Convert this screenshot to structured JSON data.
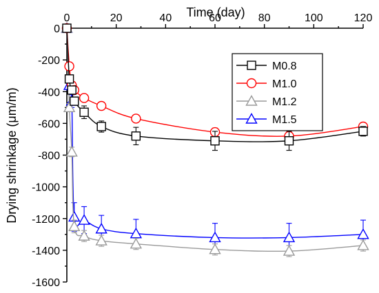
{
  "chart_data": {
    "type": "line",
    "xlabel": "Time (day)",
    "ylabel": "Drying shrinkage (μm/m)",
    "xlim": [
      0,
      120
    ],
    "ylim": [
      -1600,
      0
    ],
    "x_axis_position": "top",
    "y_axis_inverted": true,
    "xticks": [
      "0",
      "20",
      "40",
      "60",
      "80",
      "100",
      "120"
    ],
    "yticks": [
      "0",
      "-200",
      "-400",
      "-600",
      "-800",
      "-1000",
      "-1200",
      "-1400",
      "-1600"
    ],
    "grid": false,
    "legend_position": "top-right",
    "series": [
      {
        "name": "M0.8",
        "color": "#000000",
        "marker": "square",
        "x": [
          0,
          1,
          2,
          3,
          7,
          14,
          28,
          60,
          90,
          120
        ],
        "y": [
          0,
          -320,
          -390,
          -460,
          -530,
          -620,
          -680,
          -710,
          -710,
          -650
        ],
        "error": [
          0,
          20,
          20,
          25,
          40,
          35,
          55,
          60,
          60,
          30
        ]
      },
      {
        "name": "M1.0",
        "color": "#ff0000",
        "marker": "circle",
        "x": [
          0,
          1,
          2,
          3,
          7,
          14,
          28,
          60,
          90,
          120
        ],
        "y": [
          0,
          -240,
          -360,
          -390,
          -440,
          -490,
          -570,
          -655,
          -680,
          -620
        ],
        "error": [
          0,
          15,
          15,
          15,
          20,
          20,
          20,
          25,
          30,
          20
        ]
      },
      {
        "name": "M1.2",
        "color": "#999999",
        "marker": "triangle",
        "x": [
          0,
          1,
          2,
          3,
          7,
          14,
          28,
          60,
          90,
          120
        ],
        "y": [
          0,
          -500,
          -780,
          -1250,
          -1310,
          -1340,
          -1360,
          -1395,
          -1405,
          -1370
        ],
        "error": [
          0,
          25,
          30,
          40,
          35,
          35,
          35,
          35,
          35,
          35
        ]
      },
      {
        "name": "M1.5",
        "color": "#0000ff",
        "marker": "triangle",
        "x": [
          0,
          1,
          2,
          3,
          7,
          14,
          28,
          60,
          90,
          120
        ],
        "y": [
          0,
          -360,
          -460,
          -1190,
          -1210,
          -1265,
          -1295,
          -1320,
          -1320,
          -1300
        ],
        "error": [
          0,
          30,
          40,
          90,
          85,
          85,
          90,
          90,
          90,
          90
        ]
      }
    ]
  }
}
